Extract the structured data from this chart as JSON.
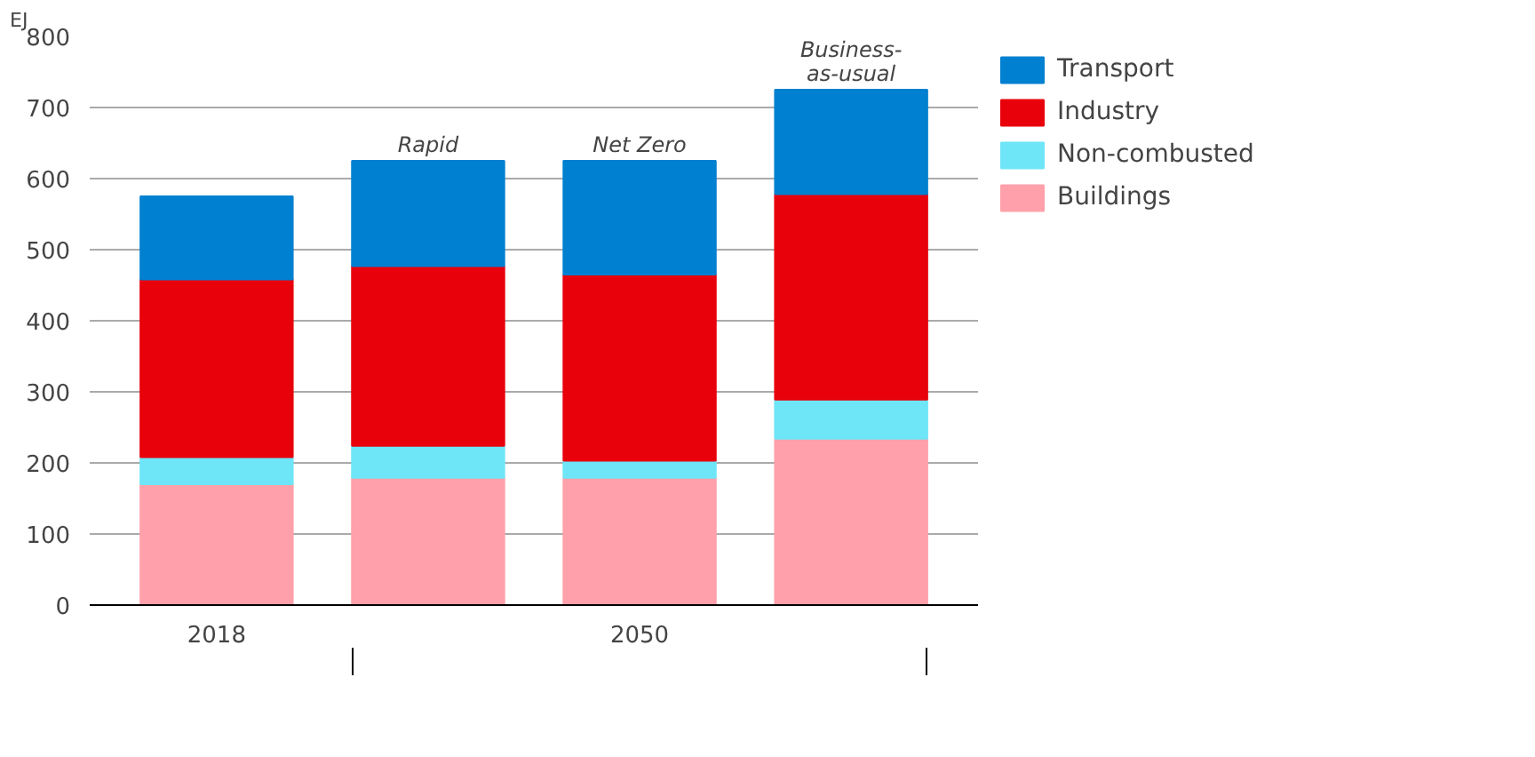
{
  "chart_data": {
    "type": "bar",
    "stacked": true,
    "ylabel": "EJ",
    "categories": [
      "2018",
      "Rapid",
      "Net Zero",
      "Business-\nas-usual"
    ],
    "series": [
      {
        "name": "Buildings",
        "color": "#ffa0aa",
        "values": [
          170,
          179,
          179,
          234
        ]
      },
      {
        "name": "Non-combusted",
        "color": "#6ee6f8",
        "values": [
          38,
          45,
          24,
          55
        ]
      },
      {
        "name": "Industry",
        "color": "#e8000b",
        "values": [
          250,
          253,
          262,
          289
        ]
      },
      {
        "name": "Transport",
        "color": "#0080d0",
        "values": [
          117,
          148,
          160,
          147
        ]
      }
    ],
    "annotations": [
      "2050"
    ],
    "ylim": [
      0,
      800
    ],
    "yticks": [
      0,
      100,
      200,
      300,
      400,
      500,
      600,
      700,
      800
    ],
    "grid": "y",
    "legend": "right"
  }
}
